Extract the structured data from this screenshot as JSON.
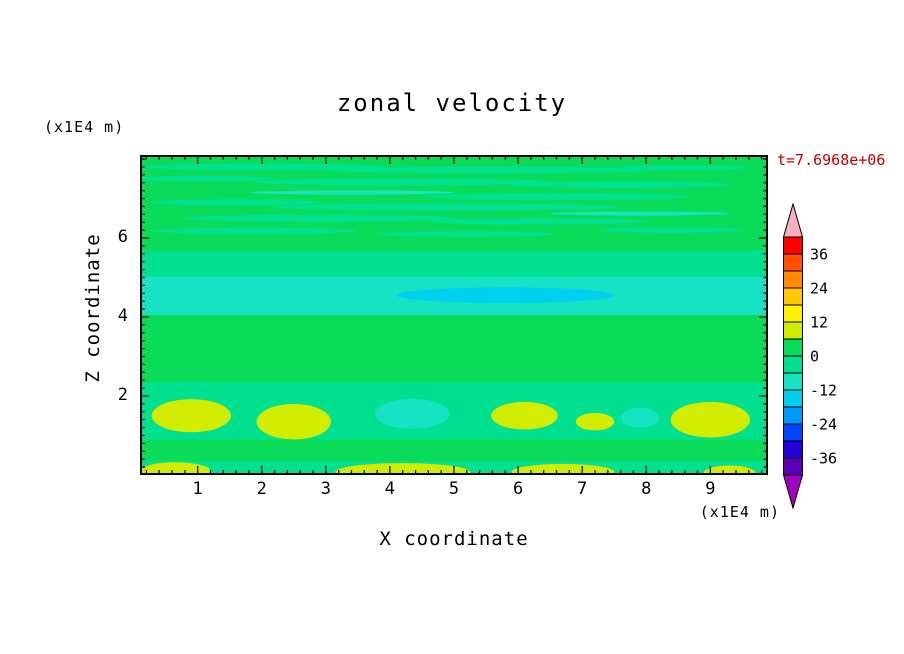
{
  "title": "zonal velocity",
  "timestamp": {
    "text": "t=7.6968e+06",
    "color": "#C00000"
  },
  "x_axis": {
    "label": "X coordinate",
    "unit": "(x1E4 m)",
    "ticks": [
      1,
      2,
      3,
      4,
      5,
      6,
      7,
      8,
      9
    ],
    "range": [
      0.1,
      9.9
    ],
    "minor_step": 0.2
  },
  "z_axis": {
    "label": "Z coordinate",
    "unit": "(x1E4 m)",
    "ticks": [
      2,
      4,
      6
    ],
    "range": [
      0,
      8.1
    ],
    "minor_step": 0.2
  },
  "colorbar": {
    "range": [
      -42,
      42
    ],
    "level_step": 6,
    "labels": [
      "36",
      "24",
      "12",
      "0",
      "-12",
      "-24",
      "-36"
    ],
    "over_color": "#F4B0C0",
    "under_color": "#A000C0",
    "segments": [
      {
        "min": 36,
        "max": 42,
        "color": "#FF0000"
      },
      {
        "min": 30,
        "max": 36,
        "color": "#FF5000"
      },
      {
        "min": 24,
        "max": 30,
        "color": "#FF8C00"
      },
      {
        "min": 18,
        "max": 24,
        "color": "#FFC800"
      },
      {
        "min": 12,
        "max": 18,
        "color": "#FFF000"
      },
      {
        "min": 6,
        "max": 12,
        "color": "#D2EC00"
      },
      {
        "min": 0,
        "max": 6,
        "color": "#0ADC5A"
      },
      {
        "min": -6,
        "max": 0,
        "color": "#00E091"
      },
      {
        "min": -12,
        "max": -6,
        "color": "#17E2C4"
      },
      {
        "min": -18,
        "max": -12,
        "color": "#00D0F0"
      },
      {
        "min": -24,
        "max": -18,
        "color": "#0096FF"
      },
      {
        "min": -30,
        "max": -24,
        "color": "#0046FF"
      },
      {
        "min": -36,
        "max": -30,
        "color": "#2400D8"
      },
      {
        "min": -42,
        "max": -36,
        "color": "#5A00B4"
      }
    ]
  },
  "chart_data": {
    "type": "heatmap",
    "title": "zonal velocity",
    "xlabel": "X coordinate (x1E4 m)",
    "ylabel": "Z coordinate (x1E4 m)",
    "annotation": "t=7.6968e+06",
    "x_range": [
      0.1,
      9.9
    ],
    "z_range": [
      0,
      8.1
    ],
    "contour_interval": 6,
    "levels_labeled": [
      36,
      24,
      12,
      0,
      -12,
      -24,
      -36
    ],
    "background_value": 2,
    "features": [
      {
        "shape": "rect",
        "value": -2,
        "x1": 0,
        "x2": 9.9,
        "z1": 0,
        "z2": 2.35
      },
      {
        "shape": "rect",
        "value": 2,
        "x1": 0,
        "x2": 9.9,
        "z1": 0.35,
        "z2": 0.9
      },
      {
        "shape": "rect",
        "value": -2,
        "x1": 0,
        "x2": 9.9,
        "z1": 5.0,
        "z2": 5.68
      },
      {
        "shape": "rect",
        "value": -8,
        "x1": 0,
        "x2": 9.9,
        "z1": 4.05,
        "z2": 5.02
      },
      {
        "shape": "ellipse",
        "value": -14,
        "cx": 5.8,
        "cz": 4.55,
        "rx": 1.7,
        "rz": 0.2
      },
      {
        "shape": "ellipse",
        "value": -2,
        "cx": 2.0,
        "cz": 7.8,
        "rx": 1.9,
        "rz": 0.08
      },
      {
        "shape": "ellipse",
        "value": -2,
        "cx": 5.6,
        "cz": 7.72,
        "rx": 2.6,
        "rz": 0.08
      },
      {
        "shape": "ellipse",
        "value": -2,
        "cx": 8.6,
        "cz": 7.78,
        "rx": 1.0,
        "rz": 0.06
      },
      {
        "shape": "ellipse",
        "value": -2,
        "cx": 1.1,
        "cz": 7.5,
        "rx": 1.1,
        "rz": 0.07
      },
      {
        "shape": "ellipse",
        "value": -2,
        "cx": 4.2,
        "cz": 7.42,
        "rx": 2.3,
        "rz": 0.09
      },
      {
        "shape": "ellipse",
        "value": -2,
        "cx": 7.6,
        "cz": 7.35,
        "rx": 1.7,
        "rz": 0.08
      },
      {
        "shape": "ellipse",
        "value": -8,
        "cx": 3.4,
        "cz": 7.15,
        "rx": 1.6,
        "rz": 0.05
      },
      {
        "shape": "ellipse",
        "value": -2,
        "cx": 6.6,
        "cz": 7.05,
        "rx": 2.1,
        "rz": 0.09
      },
      {
        "shape": "ellipse",
        "value": -2,
        "cx": 1.6,
        "cz": 6.9,
        "rx": 1.3,
        "rz": 0.08
      },
      {
        "shape": "ellipse",
        "value": -2,
        "cx": 4.9,
        "cz": 6.78,
        "rx": 2.7,
        "rz": 0.09
      },
      {
        "shape": "ellipse",
        "value": -8,
        "cx": 7.9,
        "cz": 6.62,
        "rx": 1.4,
        "rz": 0.05
      },
      {
        "shape": "ellipse",
        "value": -2,
        "cx": 2.9,
        "cz": 6.5,
        "rx": 2.1,
        "rz": 0.09
      },
      {
        "shape": "ellipse",
        "value": -2,
        "cx": 6.3,
        "cz": 6.42,
        "rx": 1.7,
        "rz": 0.08
      },
      {
        "shape": "ellipse",
        "value": -2,
        "cx": 1.9,
        "cz": 6.18,
        "rx": 1.6,
        "rz": 0.08
      },
      {
        "shape": "ellipse",
        "value": -2,
        "cx": 5.2,
        "cz": 6.1,
        "rx": 1.4,
        "rz": 0.07
      },
      {
        "shape": "ellipse",
        "value": -2,
        "cx": 8.4,
        "cz": 6.2,
        "rx": 1.1,
        "rz": 0.07
      },
      {
        "shape": "ellipse",
        "value": 8,
        "cx": 0.9,
        "cz": 1.5,
        "rx": 0.62,
        "rz": 0.42
      },
      {
        "shape": "ellipse",
        "value": 8,
        "cx": 2.5,
        "cz": 1.35,
        "rx": 0.58,
        "rz": 0.45
      },
      {
        "shape": "ellipse",
        "value": -8,
        "cx": 4.35,
        "cz": 1.55,
        "rx": 0.58,
        "rz": 0.38
      },
      {
        "shape": "ellipse",
        "value": 8,
        "cx": 6.1,
        "cz": 1.5,
        "rx": 0.52,
        "rz": 0.35
      },
      {
        "shape": "ellipse",
        "value": 8,
        "cx": 7.2,
        "cz": 1.35,
        "rx": 0.3,
        "rz": 0.22
      },
      {
        "shape": "ellipse",
        "value": -8,
        "cx": 7.9,
        "cz": 1.45,
        "rx": 0.3,
        "rz": 0.25
      },
      {
        "shape": "ellipse",
        "value": 8,
        "cx": 9.0,
        "cz": 1.4,
        "rx": 0.62,
        "rz": 0.45
      },
      {
        "shape": "ellipse",
        "value": 8,
        "cx": 0.65,
        "cz": 0.1,
        "rx": 0.55,
        "rz": 0.22
      },
      {
        "shape": "ellipse",
        "value": 8,
        "cx": 4.2,
        "cz": 0.08,
        "rx": 1.05,
        "rz": 0.22
      },
      {
        "shape": "ellipse",
        "value": 8,
        "cx": 6.7,
        "cz": 0.08,
        "rx": 0.8,
        "rz": 0.2
      },
      {
        "shape": "ellipse",
        "value": 8,
        "cx": 9.3,
        "cz": 0.06,
        "rx": 0.4,
        "rz": 0.18
      }
    ]
  }
}
